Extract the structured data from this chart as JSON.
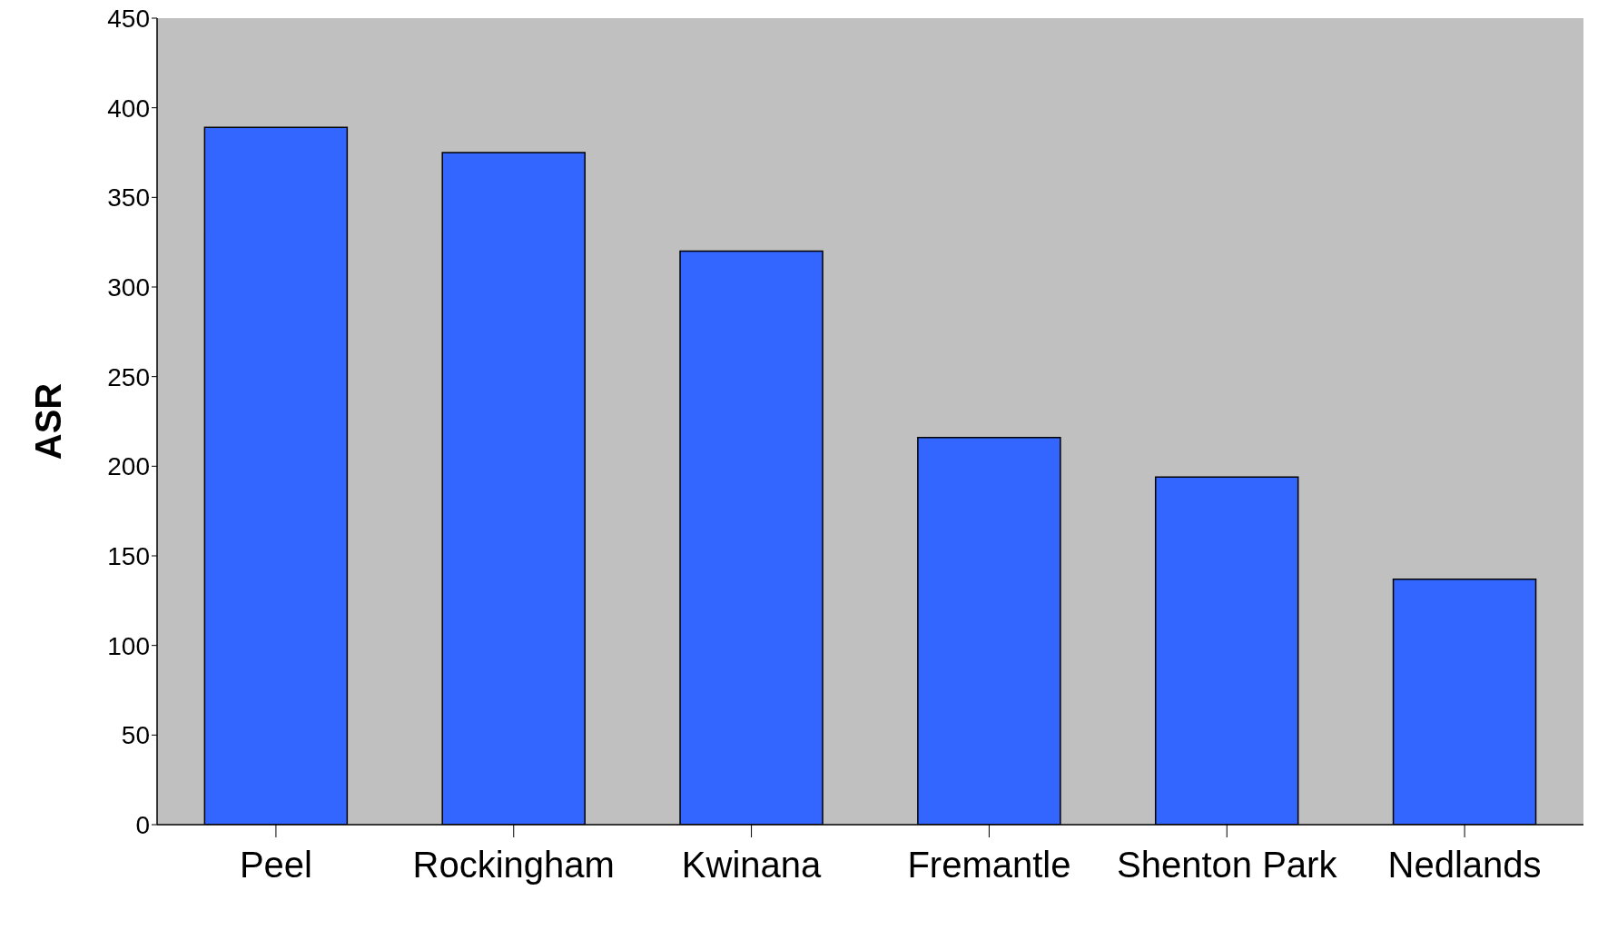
{
  "chart_data": {
    "type": "bar",
    "ylabel": "ASR",
    "categories": [
      "Peel",
      "Rockingham",
      "Kwinana",
      "Fremantle",
      "Shenton Park",
      "Nedlands"
    ],
    "values": [
      389,
      375,
      320,
      216,
      194,
      137
    ],
    "color": "#3366ff",
    "ylim": [
      0,
      450
    ],
    "yticks": [
      0,
      50,
      100,
      150,
      200,
      250,
      300,
      350,
      400,
      450
    ],
    "grid": false
  }
}
